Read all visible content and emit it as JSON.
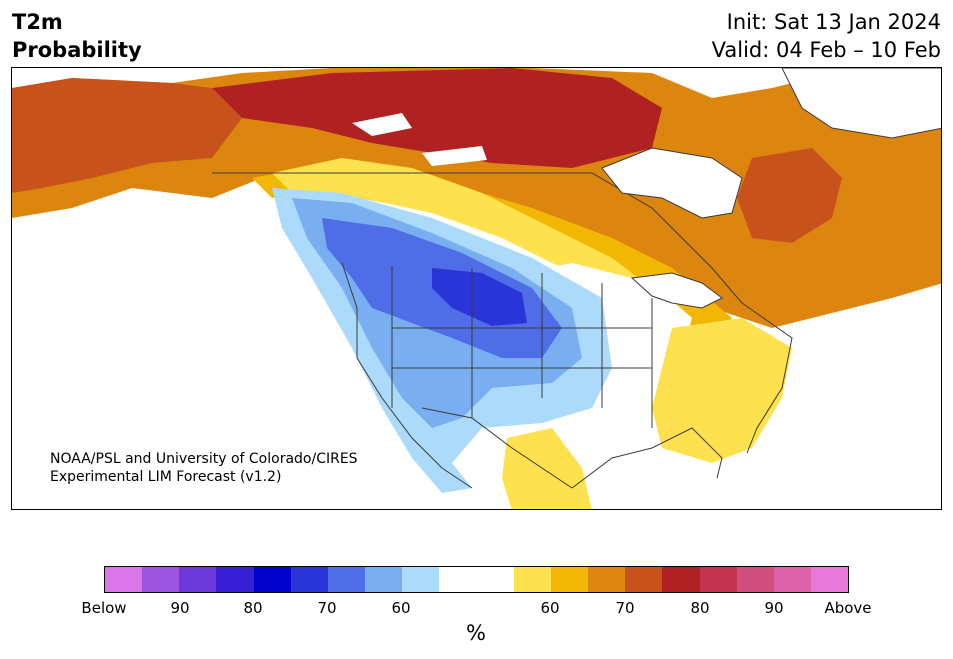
{
  "title": {
    "left_line1": "T2m",
    "left_line2": "Probability",
    "right_line1": "Init: Sat 13 Jan 2024",
    "right_line2": "Valid: 04 Feb – 10 Feb"
  },
  "credit": {
    "line1": "NOAA/PSL and University of Colorado/CIRES",
    "line2": "Experimental LIM Forecast (v1.2)"
  },
  "colorbar": {
    "colors": [
      "#d977e8",
      "#9b55e0",
      "#6c39d9",
      "#3a1ed5",
      "#0000cd",
      "#2a35d8",
      "#4f6de6",
      "#79aef0",
      "#acdafa",
      "#ffffff",
      "#ffffff",
      "#fee14e",
      "#f2b705",
      "#dd860f",
      "#c8521b",
      "#b02222",
      "#c2344f",
      "#d14f7d",
      "#dd62a8",
      "#e878d9"
    ],
    "labels": [
      "Below",
      "90",
      "80",
      "70",
      "60",
      "60",
      "70",
      "80",
      "90",
      "Above"
    ],
    "unit": "%"
  }
}
